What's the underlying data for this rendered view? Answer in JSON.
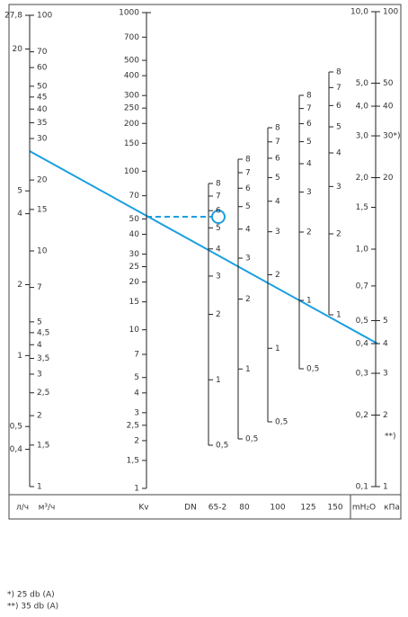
{
  "scales": {
    "flow_ls": {
      "label": "л/ч",
      "lim": [
        0.278,
        27.8
      ],
      "ticks": [
        {
          "value": 27.8,
          "label": "27,8"
        },
        20,
        5,
        4,
        2,
        1,
        {
          "value": 0.5,
          "label": "0,5"
        },
        {
          "value": 0.4,
          "label": "0,4"
        }
      ]
    },
    "flow_m3h": {
      "label": "м³/ч",
      "lim": [
        1,
        100
      ],
      "ticks": [
        1,
        {
          "value": 1.5,
          "label": "1,5"
        },
        2,
        {
          "value": 2.5,
          "label": "2,5"
        },
        3,
        {
          "value": 3.5,
          "label": "3,5"
        },
        4,
        {
          "value": 4.5,
          "label": "4,5"
        },
        5,
        7,
        10,
        15,
        20,
        30,
        35,
        40,
        45,
        50,
        60,
        70,
        100
      ]
    },
    "kv": {
      "label": "Kv",
      "lim": [
        1,
        1000
      ],
      "ticks": [
        1,
        {
          "value": 1.5,
          "label": "1,5"
        },
        2,
        {
          "value": 2.5,
          "label": "2,5"
        },
        3,
        4,
        5,
        7,
        10,
        15,
        20,
        25,
        30,
        40,
        50,
        70,
        100,
        150,
        200,
        250,
        300,
        400,
        500,
        700,
        1000
      ]
    },
    "dn": {
      "label": "DN",
      "columns": [
        {
          "name": "65-2",
          "lim": [
            0.5,
            8
          ],
          "ticks": [
            {
              "value": 0.5,
              "label": "0,5"
            },
            1,
            2,
            3,
            4,
            5,
            6,
            7,
            8
          ]
        },
        {
          "name": "80",
          "lim": [
            0.5,
            8
          ],
          "ticks": [
            {
              "value": 0.5,
              "label": "0,5"
            },
            1,
            2,
            3,
            4,
            5,
            6,
            7,
            8
          ]
        },
        {
          "name": "100",
          "lim": [
            0.5,
            8
          ],
          "ticks": [
            {
              "value": 0.5,
              "label": "0,5"
            },
            1,
            2,
            3,
            4,
            5,
            6,
            7,
            8
          ]
        },
        {
          "name": "125",
          "lim": [
            0.5,
            8
          ],
          "ticks": [
            {
              "value": 0.5,
              "label": "0,5"
            },
            1,
            2,
            3,
            4,
            5,
            6,
            7,
            8
          ]
        },
        {
          "name": "150",
          "lim": [
            1,
            8
          ],
          "ticks": [
            1,
            2,
            3,
            4,
            5,
            6,
            7,
            8
          ]
        }
      ]
    },
    "dp_mh2o": {
      "label": "mH₂O",
      "lim": [
        0.1,
        10
      ],
      "ticks": [
        {
          "value": 0.1,
          "label": "0,1"
        },
        {
          "value": 0.2,
          "label": "0,2"
        },
        {
          "value": 0.3,
          "label": "0,3"
        },
        {
          "value": 0.4,
          "label": "0,4"
        },
        {
          "value": 0.5,
          "label": "0,5"
        },
        {
          "value": 0.7,
          "label": "0,7"
        },
        {
          "value": 1,
          "label": "1,0"
        },
        {
          "value": 1.5,
          "label": "1,5"
        },
        {
          "value": 2,
          "label": "2,0"
        },
        {
          "value": 3,
          "label": "3,0"
        },
        {
          "value": 4,
          "label": "4,0"
        },
        {
          "value": 5,
          "label": "5,0"
        },
        {
          "value": 10,
          "label": "10,0"
        }
      ]
    },
    "dp_kpa": {
      "label": "кПа",
      "lim": [
        1,
        100
      ],
      "ticks": [
        1,
        2,
        3,
        4,
        5,
        20,
        {
          "value": 30,
          "label": "30*)"
        },
        40,
        50,
        100
      ],
      "note": "**)"
    }
  },
  "footnotes": [
    "*) 25 db (A)",
    "**) 35 db (A)"
  ]
}
